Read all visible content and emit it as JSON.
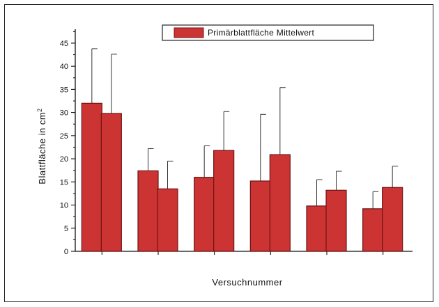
{
  "chart_data": {
    "type": "bar",
    "title": "",
    "xlabel": "Versuchnummer",
    "ylabel": "Blattfläche in cm",
    "ylabel_superscript": "2",
    "ylim": [
      0,
      48
    ],
    "yticks": [
      0,
      5,
      10,
      15,
      20,
      25,
      30,
      35,
      40,
      45
    ],
    "grid": false,
    "legend_position": "top-right",
    "bar_color": "#cc3333",
    "series": [
      {
        "name": "Primärblattfläche Mittelwert",
        "groups": [
          {
            "values": [
              32.0,
              29.8
            ],
            "errors": [
              43.8,
              42.6
            ]
          },
          {
            "values": [
              17.4,
              13.5
            ],
            "errors": [
              22.2,
              19.5
            ]
          },
          {
            "values": [
              16.0,
              21.8
            ],
            "errors": [
              22.8,
              30.2
            ]
          },
          {
            "values": [
              15.2,
              20.9
            ],
            "errors": [
              29.6,
              35.4
            ]
          },
          {
            "values": [
              9.8,
              13.2
            ],
            "errors": [
              15.5,
              17.3
            ]
          },
          {
            "values": [
              9.2,
              13.8
            ],
            "errors": [
              12.9,
              18.4
            ]
          }
        ]
      }
    ]
  }
}
